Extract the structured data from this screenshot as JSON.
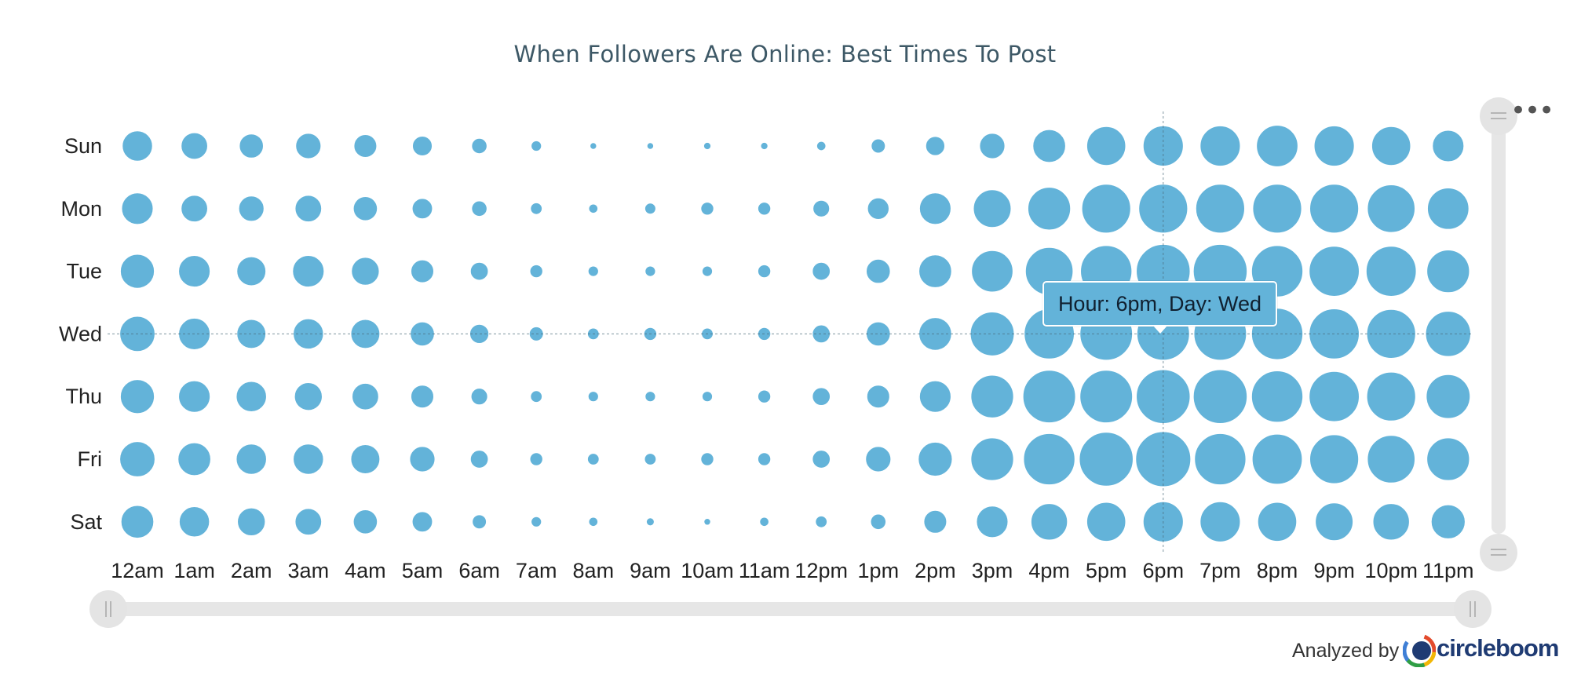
{
  "chart_data": {
    "type": "bubble",
    "title": "When Followers Are Online: Best Times To Post",
    "x": [
      "12am",
      "1am",
      "2am",
      "3am",
      "4am",
      "5am",
      "6am",
      "7am",
      "8am",
      "9am",
      "10am",
      "11am",
      "12pm",
      "1pm",
      "2pm",
      "3pm",
      "4pm",
      "5pm",
      "6pm",
      "7pm",
      "8pm",
      "9pm",
      "10pm",
      "11pm"
    ],
    "y": [
      "Sun",
      "Mon",
      "Tue",
      "Wed",
      "Thu",
      "Fri",
      "Sat"
    ],
    "values": [
      [
        50,
        44,
        40,
        42,
        38,
        33,
        26,
        18,
        12,
        12,
        13,
        13,
        16,
        24,
        32,
        42,
        54,
        64,
        66,
        66,
        68,
        66,
        64,
        52
      ],
      [
        52,
        44,
        42,
        44,
        40,
        34,
        26,
        20,
        16,
        19,
        22,
        22,
        28,
        36,
        52,
        62,
        70,
        80,
        80,
        80,
        80,
        80,
        78,
        68
      ],
      [
        56,
        52,
        48,
        52,
        46,
        38,
        30,
        22,
        18,
        18,
        18,
        22,
        30,
        40,
        54,
        68,
        78,
        84,
        88,
        88,
        84,
        82,
        82,
        70
      ],
      [
        58,
        52,
        48,
        50,
        48,
        40,
        32,
        24,
        20,
        22,
        20,
        22,
        30,
        40,
        54,
        72,
        82,
        86,
        86,
        86,
        84,
        82,
        80,
        74
      ],
      [
        56,
        52,
        50,
        46,
        44,
        38,
        28,
        20,
        18,
        18,
        18,
        22,
        30,
        38,
        52,
        70,
        86,
        86,
        88,
        88,
        84,
        82,
        80,
        72
      ],
      [
        58,
        54,
        50,
        50,
        48,
        42,
        30,
        22,
        20,
        20,
        22,
        22,
        30,
        42,
        56,
        70,
        84,
        88,
        90,
        84,
        82,
        80,
        78,
        70
      ],
      [
        54,
        50,
        46,
        44,
        40,
        34,
        24,
        18,
        16,
        14,
        12,
        16,
        20,
        26,
        38,
        52,
        60,
        64,
        66,
        66,
        64,
        62,
        60,
        56
      ]
    ],
    "tooltip": "Hour: 6pm, Day: Wed",
    "crosshair": {
      "x": "6pm",
      "y": "Wed"
    },
    "color": "#63b3d9",
    "legend": "none",
    "grid": false
  },
  "footer": {
    "analyzed_by": "Analyzed by",
    "brand": "circleboom"
  },
  "controls": {
    "menu_icon": "ellipsis-icon",
    "x_scroll_icon": "horizontal-range-slider",
    "y_scroll_icon": "vertical-range-slider"
  }
}
